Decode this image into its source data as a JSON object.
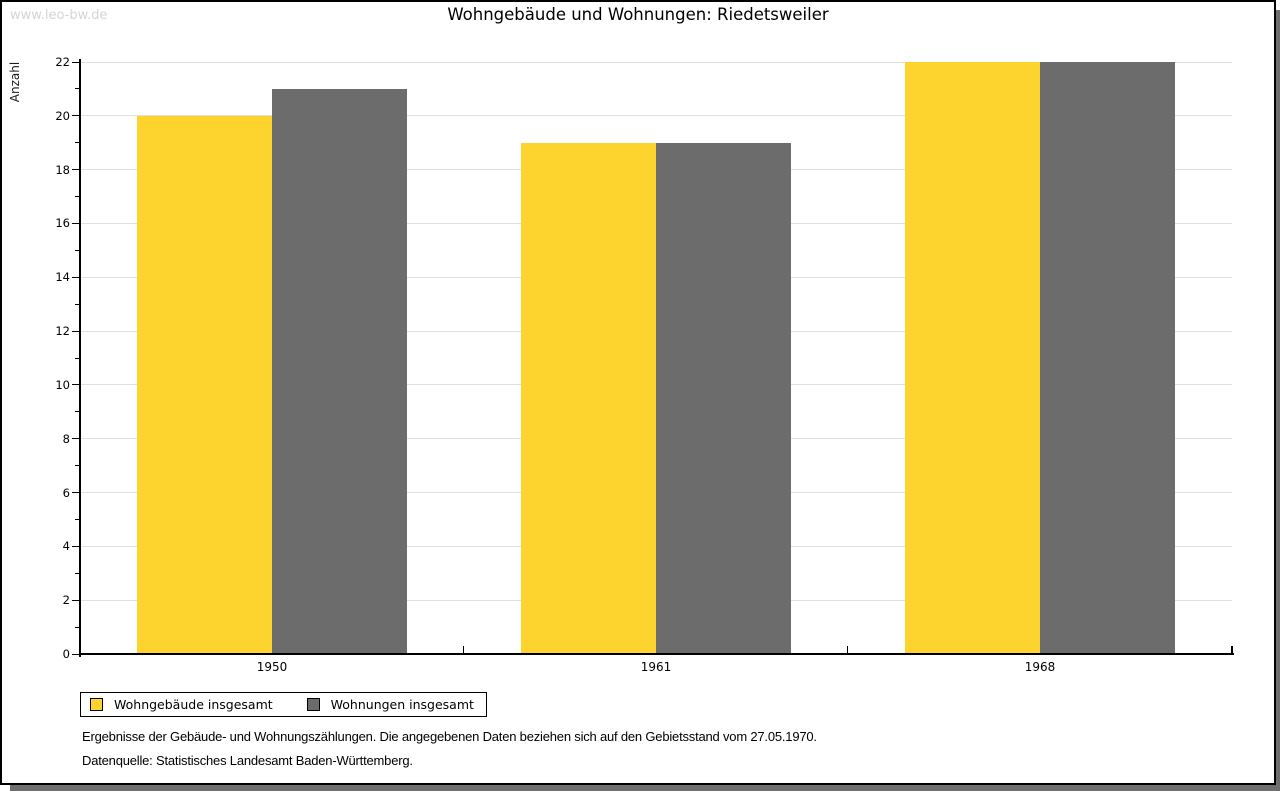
{
  "watermark": "www.leo-bw.de",
  "title": "Wohngebäude und Wohnungen: Riedetsweiler",
  "chart_data": {
    "type": "bar",
    "title": "Wohngebäude und Wohnungen: Riedetsweiler",
    "categories": [
      "1950",
      "1961",
      "1968"
    ],
    "series": [
      {
        "name": "Wohngebäude insgesamt",
        "color": "#fcd42d",
        "values": [
          20,
          19,
          22
        ]
      },
      {
        "name": "Wohnungen insgesamt",
        "color": "#6c6c6c",
        "values": [
          21,
          19,
          22
        ]
      }
    ],
    "xlabel": "",
    "ylabel": "Anzahl",
    "ylim": [
      0,
      22
    ],
    "yticks": [
      0,
      2,
      4,
      6,
      8,
      10,
      12,
      14,
      16,
      18,
      20,
      22
    ],
    "minor_tick_step": 1,
    "grid": true,
    "gridline_color": "#e0e0e0",
    "legend_position": "bottom-left"
  },
  "footnotes": [
    "Ergebnisse der Gebäude- und Wohnungszählungen. Die angegebenen Daten beziehen sich auf den Gebietsstand vom 27.05.1970.",
    "Datenquelle: Statistisches Landesamt Baden-Württemberg."
  ]
}
